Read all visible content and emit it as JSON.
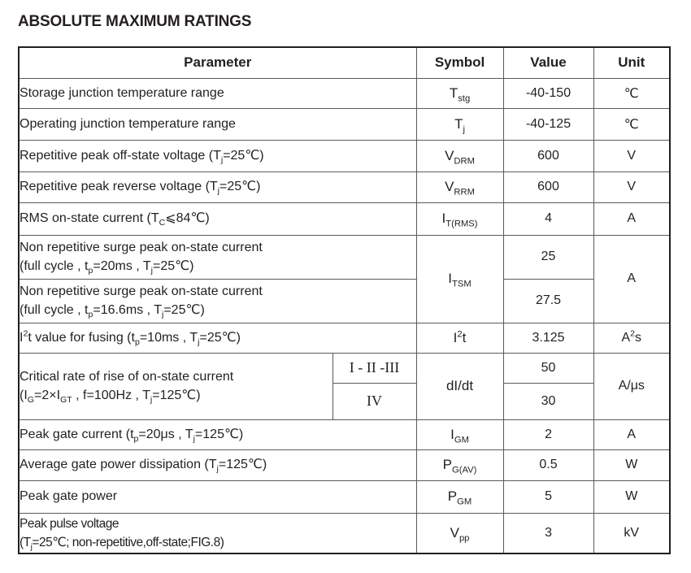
{
  "page": {
    "title": "ABSOLUTE MAXIMUM RATINGS"
  },
  "table": {
    "headers": {
      "parameter": "Parameter",
      "symbol": "Symbol",
      "value": "Value",
      "unit": "Unit"
    },
    "rows": [
      {
        "parameter": "Storage junction temperature range",
        "symbol": "T_{stg}",
        "value": "-40-150",
        "unit": "℃"
      },
      {
        "parameter": "Operating junction temperature range",
        "symbol": "T_{j}",
        "value": "-40-125",
        "unit": "℃"
      },
      {
        "parameter": "Repetitive peak off-state voltage (T_{j}=25℃)",
        "symbol": "V_{DRM}",
        "value": "600",
        "unit": "V"
      },
      {
        "parameter": "Repetitive peak reverse voltage (T_{j}=25℃)",
        "symbol": "V_{RRM}",
        "value": "600",
        "unit": "V"
      },
      {
        "parameter": "RMS on-state current (T_{C}⩽84℃)",
        "symbol": "I_{T(RMS)}",
        "value": "4",
        "unit": "A"
      },
      {
        "parameter": "Non repetitive surge peak on-state current\n(full cycle , t_{p}=20ms , T_{j}=25℃)",
        "symbol": "I_{TSM}",
        "value": "25",
        "unit": "A"
      },
      {
        "parameter": "Non repetitive surge peak on-state current\n(full cycle , t_{p}=16.6ms , T_{j}=25℃)",
        "value": "27.5"
      },
      {
        "parameter": "I^{2}t value for fusing (t_{p}=10ms , T_{j}=25℃)",
        "symbol": "I^{2}t",
        "value": "3.125",
        "unit": "A^{2}s"
      },
      {
        "parameter": "Critical rate of rise of on-state current\n(I_{G}=2×I_{GT} , f=100Hz , T_{j}=125℃)",
        "classes": [
          "I - II -III",
          "IV"
        ],
        "symbol": "dI/dt",
        "values": [
          "50",
          "30"
        ],
        "unit": "A/μs"
      },
      {
        "parameter": "Peak gate current (t_{p}=20μs , T_{j}=125℃)",
        "symbol": "I_{GM}",
        "value": "2",
        "unit": "A"
      },
      {
        "parameter": "Average gate power dissipation (T_{j}=125℃)",
        "symbol": "P_{G(AV)}",
        "value": "0.5",
        "unit": "W"
      },
      {
        "parameter": "Peak gate power",
        "symbol": "P_{GM}",
        "value": "5",
        "unit": "W"
      },
      {
        "parameter": "Peak pulse voltage\n(T_{j}=25℃; non-repetitive,off-state;FIG.8)",
        "symbol": "V_{pp}",
        "value": "3",
        "unit": "kV"
      }
    ]
  }
}
